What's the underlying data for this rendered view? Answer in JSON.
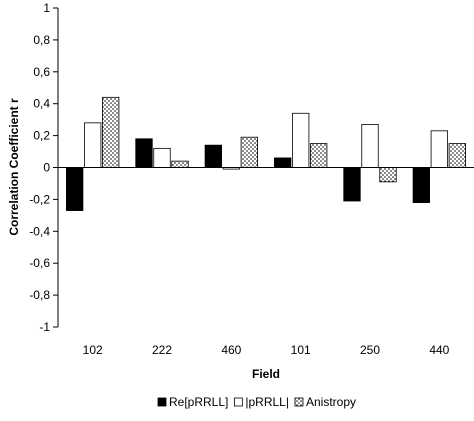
{
  "chart_data": {
    "type": "bar",
    "title": "",
    "xlabel": "Field",
    "ylabel": "Correlation Coefficient r",
    "ylim": [
      -1,
      1
    ],
    "ytick_step": 0.2,
    "ytick_labels": [
      "-1",
      "-0,8",
      "-0,6",
      "-0,4",
      "-0,2",
      "0",
      "0,2",
      "0,4",
      "0,6",
      "0,8",
      "1"
    ],
    "categories": [
      "102",
      "222",
      "460",
      "101",
      "250",
      "440"
    ],
    "series": [
      {
        "name": "Re[pRRLL]",
        "values": [
          -0.27,
          0.18,
          0.14,
          0.06,
          -0.21,
          -0.22
        ],
        "style": "solid",
        "color": "#000000"
      },
      {
        "name": "|pRRLL|",
        "values": [
          0.28,
          0.12,
          -0.01,
          0.34,
          0.27,
          0.23
        ],
        "style": "hollow",
        "color": "#ffffff"
      },
      {
        "name": "Anistropy",
        "values": [
          0.44,
          0.04,
          0.19,
          0.15,
          -0.09,
          0.15
        ],
        "style": "dotted",
        "color": "#ffffff"
      }
    ],
    "grid": false,
    "legend_position": "bottom-center"
  }
}
